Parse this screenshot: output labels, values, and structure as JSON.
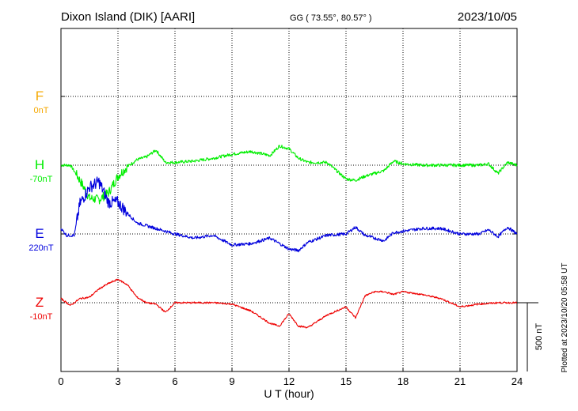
{
  "header": {
    "station": "Dixon Island (DIK)  [AARI]",
    "coords": "GG ( 73.55°,  80.57° )",
    "date": "2023/10/05"
  },
  "side_note": "Plotted at 2023/10/20 05:58 UT",
  "chart_data": {
    "type": "line",
    "xlabel": "U T (hour)",
    "xlim": [
      0,
      24
    ],
    "x_ticks": [
      0,
      3,
      6,
      9,
      12,
      15,
      18,
      21,
      24
    ],
    "scale_bar": {
      "label": "500 nT",
      "value_nT": 500
    },
    "grid": true,
    "components": [
      {
        "name": "F",
        "baseline": "0nT",
        "color": "#f5a800",
        "x": [],
        "y": []
      },
      {
        "name": "H",
        "baseline": "-70nT",
        "color": "#00ee00",
        "x": [
          0,
          0.5,
          1.0,
          1.5,
          2.0,
          2.5,
          3.0,
          3.5,
          4.0,
          4.5,
          5.0,
          5.5,
          6.0,
          7.0,
          8.0,
          9.0,
          10.0,
          11.0,
          11.5,
          12.0,
          12.5,
          13.0,
          14.0,
          15.0,
          15.5,
          16.0,
          17.0,
          17.5,
          18.0,
          19.0,
          20.0,
          21.0,
          22.0,
          22.5,
          23.0,
          23.5,
          24.0
        ],
        "y": [
          0,
          0,
          -110,
          -240,
          -250,
          -200,
          -80,
          -10,
          40,
          60,
          110,
          20,
          20,
          30,
          50,
          80,
          100,
          70,
          140,
          120,
          50,
          20,
          20,
          -100,
          -110,
          -80,
          -40,
          30,
          10,
          0,
          0,
          0,
          0,
          10,
          -60,
          20,
          0
        ]
      },
      {
        "name": "E",
        "baseline": "220nT",
        "color": "#0000dd",
        "x": [
          0,
          0.3,
          0.7,
          1.0,
          1.5,
          2.0,
          2.5,
          3.0,
          3.5,
          4.0,
          5.0,
          6.0,
          7.0,
          8.0,
          9.0,
          10.0,
          11.0,
          12.0,
          12.5,
          13.0,
          14.0,
          15.0,
          15.5,
          16.0,
          17.0,
          17.5,
          18.0,
          19.0,
          20.0,
          21.0,
          22.0,
          22.5,
          23.0,
          23.5,
          24.0
        ],
        "y": [
          40,
          -10,
          -10,
          220,
          340,
          380,
          230,
          230,
          150,
          80,
          40,
          0,
          -30,
          -10,
          -80,
          -70,
          -30,
          -110,
          -120,
          -60,
          -10,
          0,
          50,
          -10,
          -50,
          10,
          20,
          40,
          40,
          0,
          0,
          30,
          -20,
          50,
          0
        ]
      },
      {
        "name": "Z",
        "baseline": "-10nT",
        "color": "#ee0000",
        "x": [
          0,
          0.5,
          1.0,
          1.5,
          2.0,
          2.5,
          3.0,
          3.5,
          4.0,
          4.5,
          5.0,
          5.5,
          6.0,
          7.0,
          8.0,
          9.0,
          10.0,
          11.0,
          11.5,
          12.0,
          12.5,
          13.0,
          14.0,
          15.0,
          15.5,
          16.0,
          16.5,
          17.0,
          17.5,
          18.0,
          19.0,
          20.0,
          21.0,
          22.0,
          23.0,
          24.0
        ],
        "y": [
          30,
          -20,
          30,
          40,
          100,
          140,
          170,
          130,
          40,
          0,
          -10,
          -70,
          0,
          0,
          0,
          -10,
          -60,
          -150,
          -170,
          -80,
          -170,
          -180,
          -90,
          -30,
          -110,
          50,
          80,
          80,
          60,
          80,
          60,
          30,
          -30,
          -10,
          0,
          0
        ]
      }
    ]
  }
}
